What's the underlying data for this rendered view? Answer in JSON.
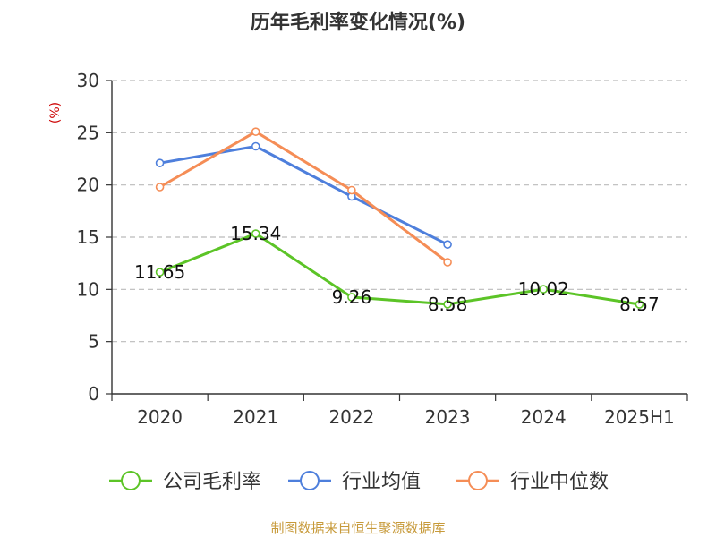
{
  "chart_data": {
    "type": "line",
    "title": "历年毛利率变化情况(%)",
    "ylabel": "(%)",
    "xlabel": "",
    "categories": [
      "2020",
      "2021",
      "2022",
      "2023",
      "2024",
      "2025H1"
    ],
    "ylim": [
      0,
      30
    ],
    "yticks": [
      0,
      5,
      10,
      15,
      20,
      25,
      30
    ],
    "grid": true,
    "legend_position": "bottom",
    "series": [
      {
        "name": "公司毛利率",
        "color": "#5cc427",
        "values": [
          11.65,
          15.34,
          9.26,
          8.58,
          10.02,
          8.57
        ],
        "labels": [
          "11.65",
          "15.34",
          "9.26",
          "8.58",
          "10.02",
          "8.57"
        ]
      },
      {
        "name": "行业均值",
        "color": "#4e7fdc",
        "values": [
          22.1,
          23.7,
          18.9,
          14.3,
          null,
          null
        ]
      },
      {
        "name": "行业中位数",
        "color": "#f58d56",
        "values": [
          19.8,
          25.1,
          19.5,
          12.6,
          null,
          null
        ]
      }
    ]
  },
  "source": "制图数据来自恒生聚源数据库",
  "colors": {
    "ylabel": "#cc0000",
    "source": "#c79a3a",
    "axis": "#333333",
    "grid": "#bbbbbb"
  }
}
